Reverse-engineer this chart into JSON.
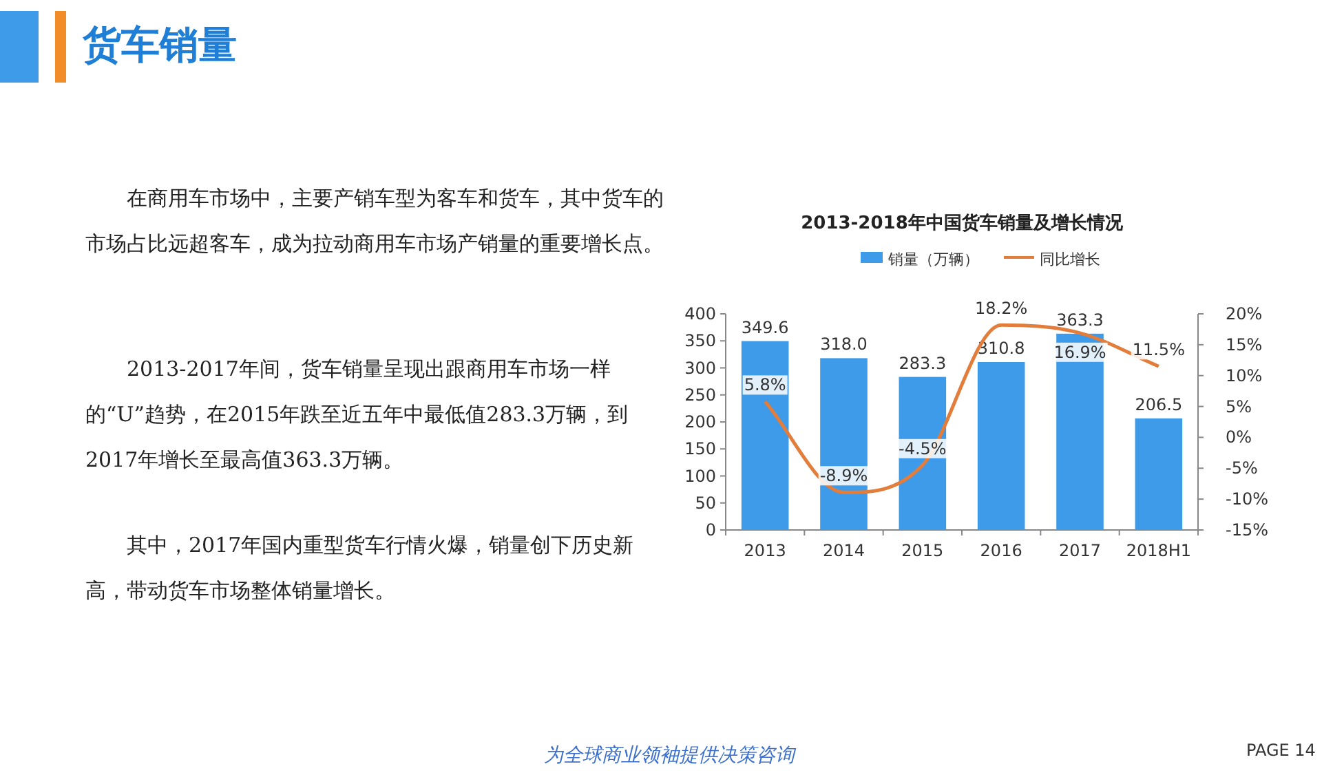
{
  "chart_data": {
    "type": "bar",
    "title": "2013-2018年中国货车销量及增长情况",
    "categories": [
      "2013",
      "2014",
      "2015",
      "2016",
      "2017",
      "2018H1"
    ],
    "series": [
      {
        "name": "销量（万辆）",
        "color": "#3d9be9",
        "values": [
          349.6,
          318.0,
          283.3,
          310.8,
          363.3,
          206.5
        ],
        "value_labels": [
          "349.6",
          "318.0",
          "283.3",
          "310.8",
          "363.3",
          "206.5"
        ]
      },
      {
        "name": "同比增长",
        "type": "line",
        "axis": "y2",
        "color": "#e27d3c",
        "values": [
          5.8,
          -8.9,
          -4.5,
          18.2,
          16.9,
          11.5
        ],
        "value_labels": [
          "5.8%",
          "-8.9%",
          "-4.5%",
          "18.2%",
          "16.9%",
          "11.5%"
        ]
      }
    ],
    "ylim": [
      0,
      400
    ],
    "yticks": [
      0,
      50,
      100,
      150,
      200,
      250,
      300,
      350,
      400
    ],
    "y2lim": [
      -15,
      20
    ],
    "y2ticks": [
      {
        "value": -15,
        "label": "-15%"
      },
      {
        "value": -10,
        "label": "-10%"
      },
      {
        "value": -5,
        "label": "-5%"
      },
      {
        "value": 0,
        "label": "0%"
      },
      {
        "value": 5,
        "label": "5%"
      },
      {
        "value": 10,
        "label": "10%"
      },
      {
        "value": 15,
        "label": "15%"
      },
      {
        "value": 20,
        "label": "20%"
      }
    ],
    "legend": "top",
    "grid": false,
    "annotations": [
      "货车销量",
      "在商用车市场中，主要产销车型为客车和货车，其中货车的市场占比远超客车，成为拉动商用车市场产销量的重要增长点。",
      "2013-2017年间，货车销量呈现出跟商用车市场一样的“U”趋势，在2015年跌至近五年中最低值283.3万辆，到2017年增长至最高值363.3万辆。",
      "其中，2017年国内重型货车行情火爆，销量创下历史新高，带动货车市场整体销量增长。",
      "为全球商业领袖提供决策咨询",
      "PAGE 14"
    ]
  }
}
